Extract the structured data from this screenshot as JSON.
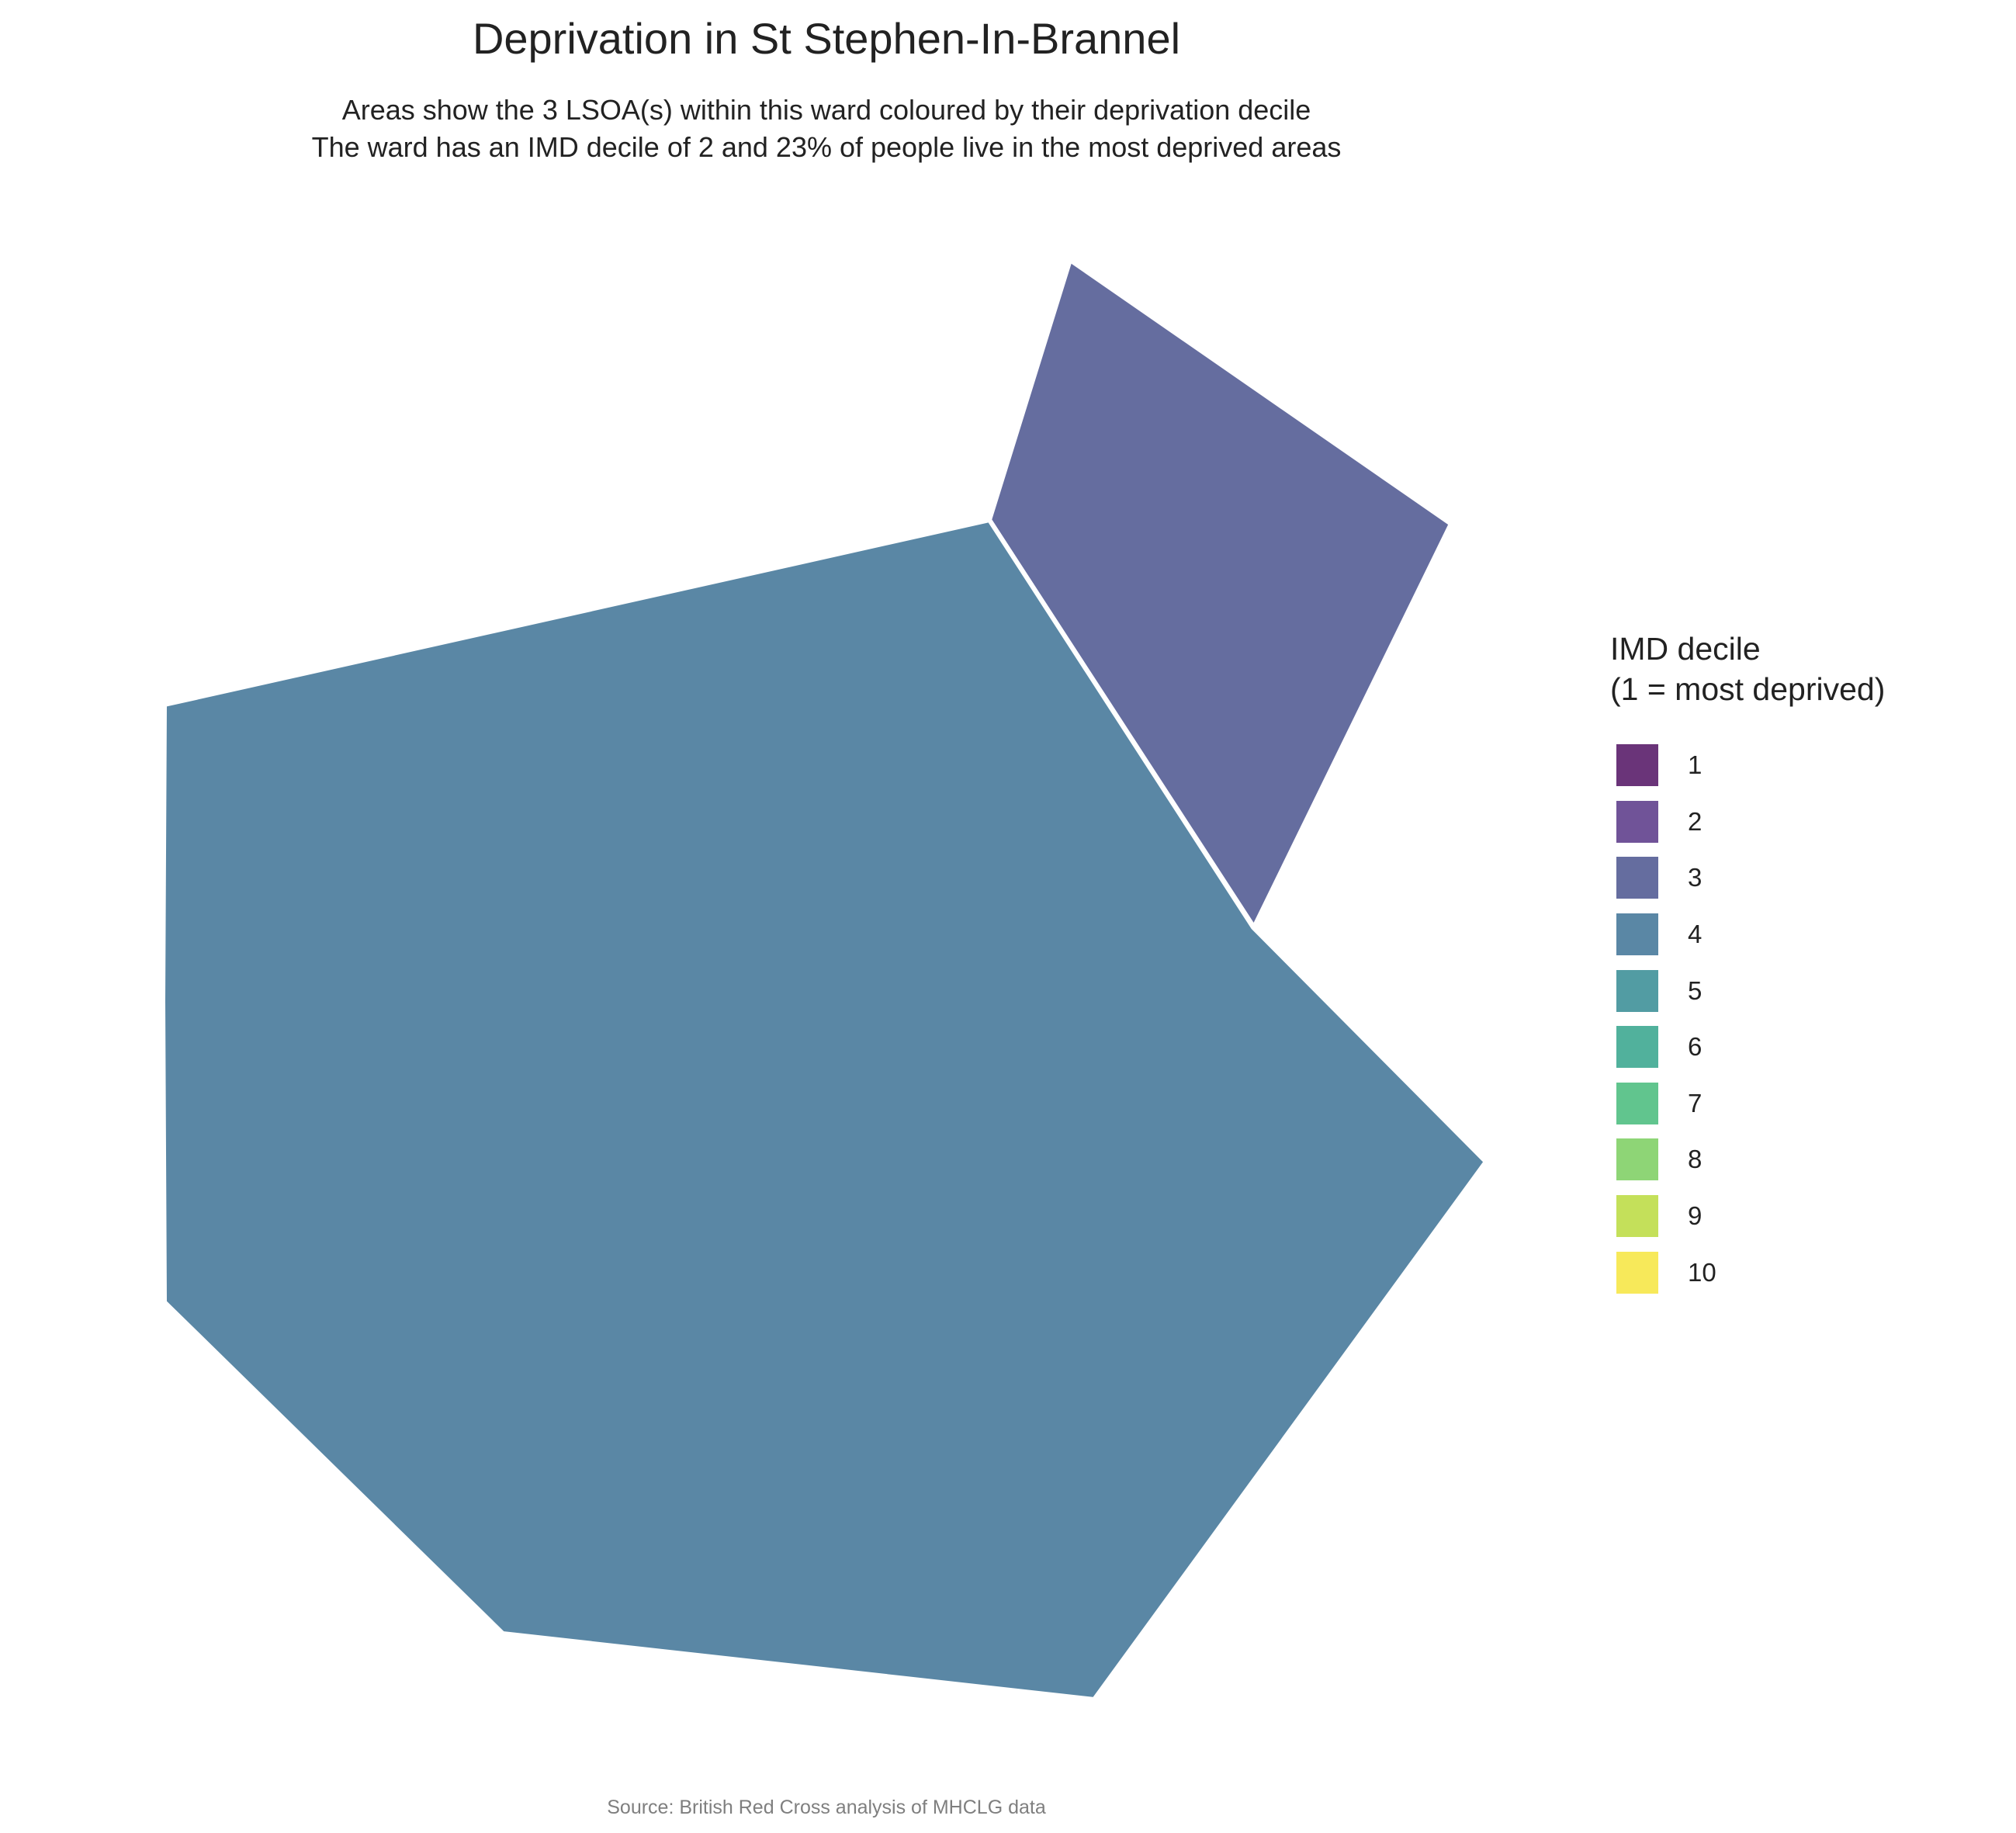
{
  "title": "Deprivation in St Stephen-In-Brannel",
  "subtitle": {
    "line1": "Areas show the 3 LSOA(s) within this ward coloured by their deprivation decile",
    "line2": "The ward has an IMD decile of 2 and 23% of people live in the most deprived areas"
  },
  "legend": {
    "title_line1": "IMD decile",
    "title_line2": "(1 = most deprived)",
    "items": [
      {
        "label": "1",
        "color": "#6a3479"
      },
      {
        "label": "2",
        "color": "#705398"
      },
      {
        "label": "3",
        "color": "#656d9f"
      },
      {
        "label": "4",
        "color": "#5a87a5"
      },
      {
        "label": "5",
        "color": "#529ca3"
      },
      {
        "label": "6",
        "color": "#51b19c"
      },
      {
        "label": "7",
        "color": "#61c58e"
      },
      {
        "label": "8",
        "color": "#8ed576"
      },
      {
        "label": "9",
        "color": "#c4e05a"
      },
      {
        "label": "10",
        "color": "#f7e95a"
      }
    ]
  },
  "map": {
    "areas": [
      {
        "name": "lsoa-decile-3",
        "decile": 3,
        "color": "#656d9f"
      },
      {
        "name": "lsoa-decile-4",
        "decile": 4,
        "color": "#5a87a5"
      }
    ]
  },
  "source": "Source: British Red Cross analysis of MHCLG data"
}
